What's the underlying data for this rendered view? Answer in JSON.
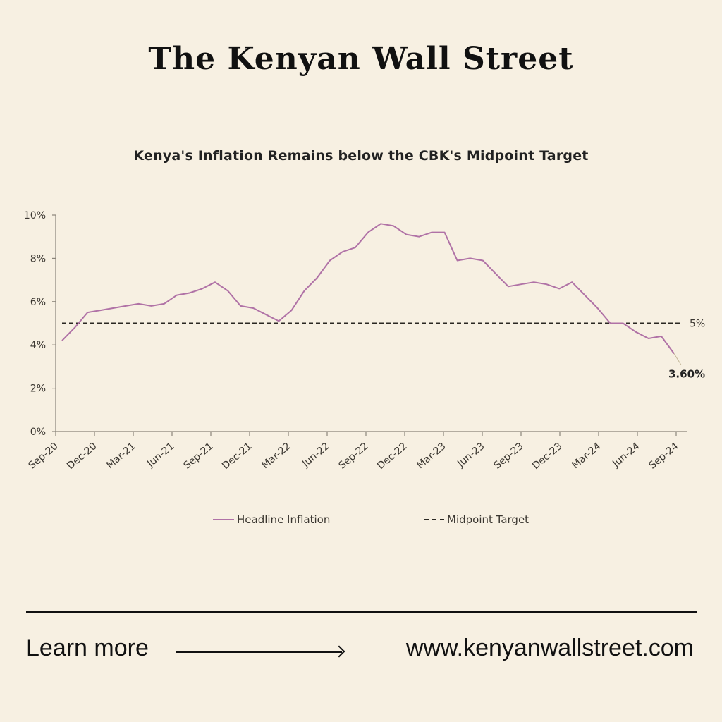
{
  "masthead": {
    "title": "The Kenyan Wall Street"
  },
  "chart_title": "Kenya's Inflation Remains below the CBK's Midpoint Target",
  "legend": {
    "series_label": "Headline Inflation",
    "target_label": "Midpoint Target"
  },
  "annotations": {
    "target_label": "5%",
    "last_value_label": "3.60%"
  },
  "footer": {
    "learn_more": "Learn more",
    "url": "www.kenyanwallstreet.com"
  },
  "colors": {
    "background": "#f7f0e2",
    "series": "#b072a6",
    "target": "#2a2722",
    "axis": "#8a847a"
  },
  "chart_data": {
    "type": "line",
    "title": "Kenya's Inflation Remains below the CBK's Midpoint Target",
    "xlabel": "",
    "ylabel": "",
    "ylim": [
      0,
      10
    ],
    "yticks": [
      "0%",
      "2%",
      "4%",
      "6%",
      "8%",
      "10%"
    ],
    "xticks": [
      "Sep-20",
      "Dec-20",
      "Mar-21",
      "Jun-21",
      "Sep-21",
      "Dec-21",
      "Mar-22",
      "Jun-22",
      "Sep-22",
      "Dec-22",
      "Mar-23",
      "Jun-23",
      "Sep-23",
      "Dec-23",
      "Mar-24",
      "Jun-24",
      "Sep-24"
    ],
    "grid": false,
    "legend_position": "bottom",
    "x": [
      "Sep-20",
      "Oct-20",
      "Nov-20",
      "Dec-20",
      "Jan-21",
      "Feb-21",
      "Mar-21",
      "Apr-21",
      "May-21",
      "Jun-21",
      "Jul-21",
      "Aug-21",
      "Sep-21",
      "Oct-21",
      "Nov-21",
      "Dec-21",
      "Jan-22",
      "Feb-22",
      "Mar-22",
      "Apr-22",
      "May-22",
      "Jun-22",
      "Jul-22",
      "Aug-22",
      "Sep-22",
      "Oct-22",
      "Nov-22",
      "Dec-22",
      "Jan-23",
      "Feb-23",
      "Mar-23",
      "Apr-23",
      "May-23",
      "Jun-23",
      "Jul-23",
      "Aug-23",
      "Sep-23",
      "Oct-23",
      "Nov-23",
      "Dec-23",
      "Jan-24",
      "Feb-24",
      "Mar-24",
      "Apr-24",
      "May-24",
      "Jun-24",
      "Jul-24",
      "Aug-24",
      "Sep-24"
    ],
    "series": [
      {
        "name": "Headline Inflation",
        "style": "solid",
        "values": [
          4.2,
          4.8,
          5.5,
          5.6,
          5.7,
          5.8,
          5.9,
          5.8,
          5.9,
          6.3,
          6.4,
          6.6,
          6.9,
          6.5,
          5.8,
          5.7,
          5.4,
          5.1,
          5.6,
          6.5,
          7.1,
          7.9,
          8.3,
          8.5,
          9.2,
          9.6,
          9.5,
          9.1,
          9.0,
          9.2,
          9.2,
          7.9,
          8.0,
          7.9,
          7.3,
          6.7,
          6.8,
          6.9,
          6.8,
          6.6,
          6.9,
          6.3,
          5.7,
          5.0,
          5.0,
          4.6,
          4.3,
          4.4,
          3.6
        ]
      },
      {
        "name": "Midpoint Target",
        "style": "dashed",
        "values": [
          5,
          5,
          5,
          5,
          5,
          5,
          5,
          5,
          5,
          5,
          5,
          5,
          5,
          5,
          5,
          5,
          5,
          5,
          5,
          5,
          5,
          5,
          5,
          5,
          5,
          5,
          5,
          5,
          5,
          5,
          5,
          5,
          5,
          5,
          5,
          5,
          5,
          5,
          5,
          5,
          5,
          5,
          5,
          5,
          5,
          5,
          5,
          5,
          5
        ]
      }
    ]
  }
}
